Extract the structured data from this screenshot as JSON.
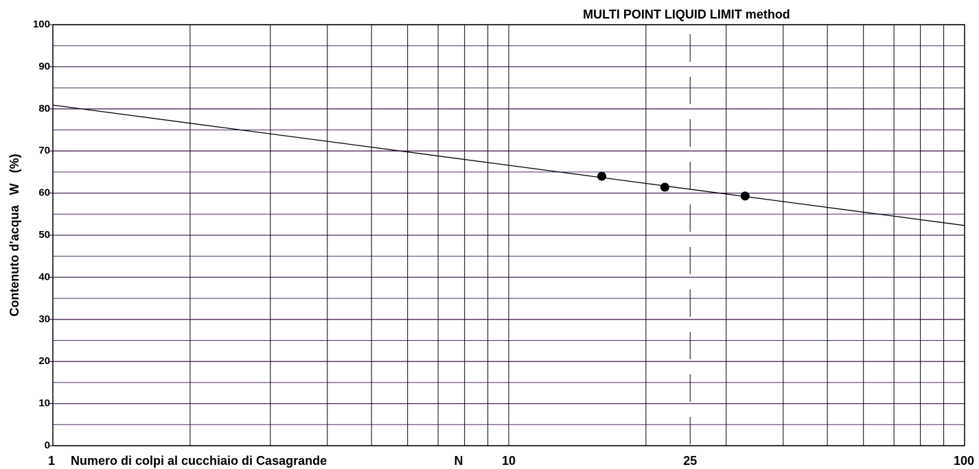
{
  "chart_data": {
    "type": "scatter",
    "title": "MULTI POINT LIQUID LIMIT method",
    "xlabel": "Numero di colpi al cucchiaio di Casagrande",
    "xlabel_symbol": "N",
    "ylabel": "Contenuto d'acqua   W   (%)",
    "xlog": true,
    "xlim": [
      1,
      100
    ],
    "ylim": [
      0,
      100
    ],
    "xticks": [
      1,
      10,
      25,
      100
    ],
    "yticks": [
      0,
      10,
      20,
      30,
      40,
      50,
      60,
      70,
      80,
      90,
      100
    ],
    "x_minor_grid": [
      2,
      3,
      4,
      5,
      6,
      7,
      8,
      9,
      10,
      20,
      30,
      40,
      50,
      60,
      70,
      80,
      90
    ],
    "y_minor_grid": [
      5,
      15,
      25,
      35,
      45,
      55,
      65,
      75,
      85,
      95
    ],
    "reference_line_x": 25,
    "grid": true,
    "points": {
      "color": "#000000",
      "x": [
        16,
        22,
        33
      ],
      "values": [
        64,
        61.4,
        59.3
      ]
    },
    "fit_line": {
      "color": "#000000",
      "x": [
        1,
        100
      ],
      "values": [
        80.9,
        52.3
      ]
    }
  }
}
